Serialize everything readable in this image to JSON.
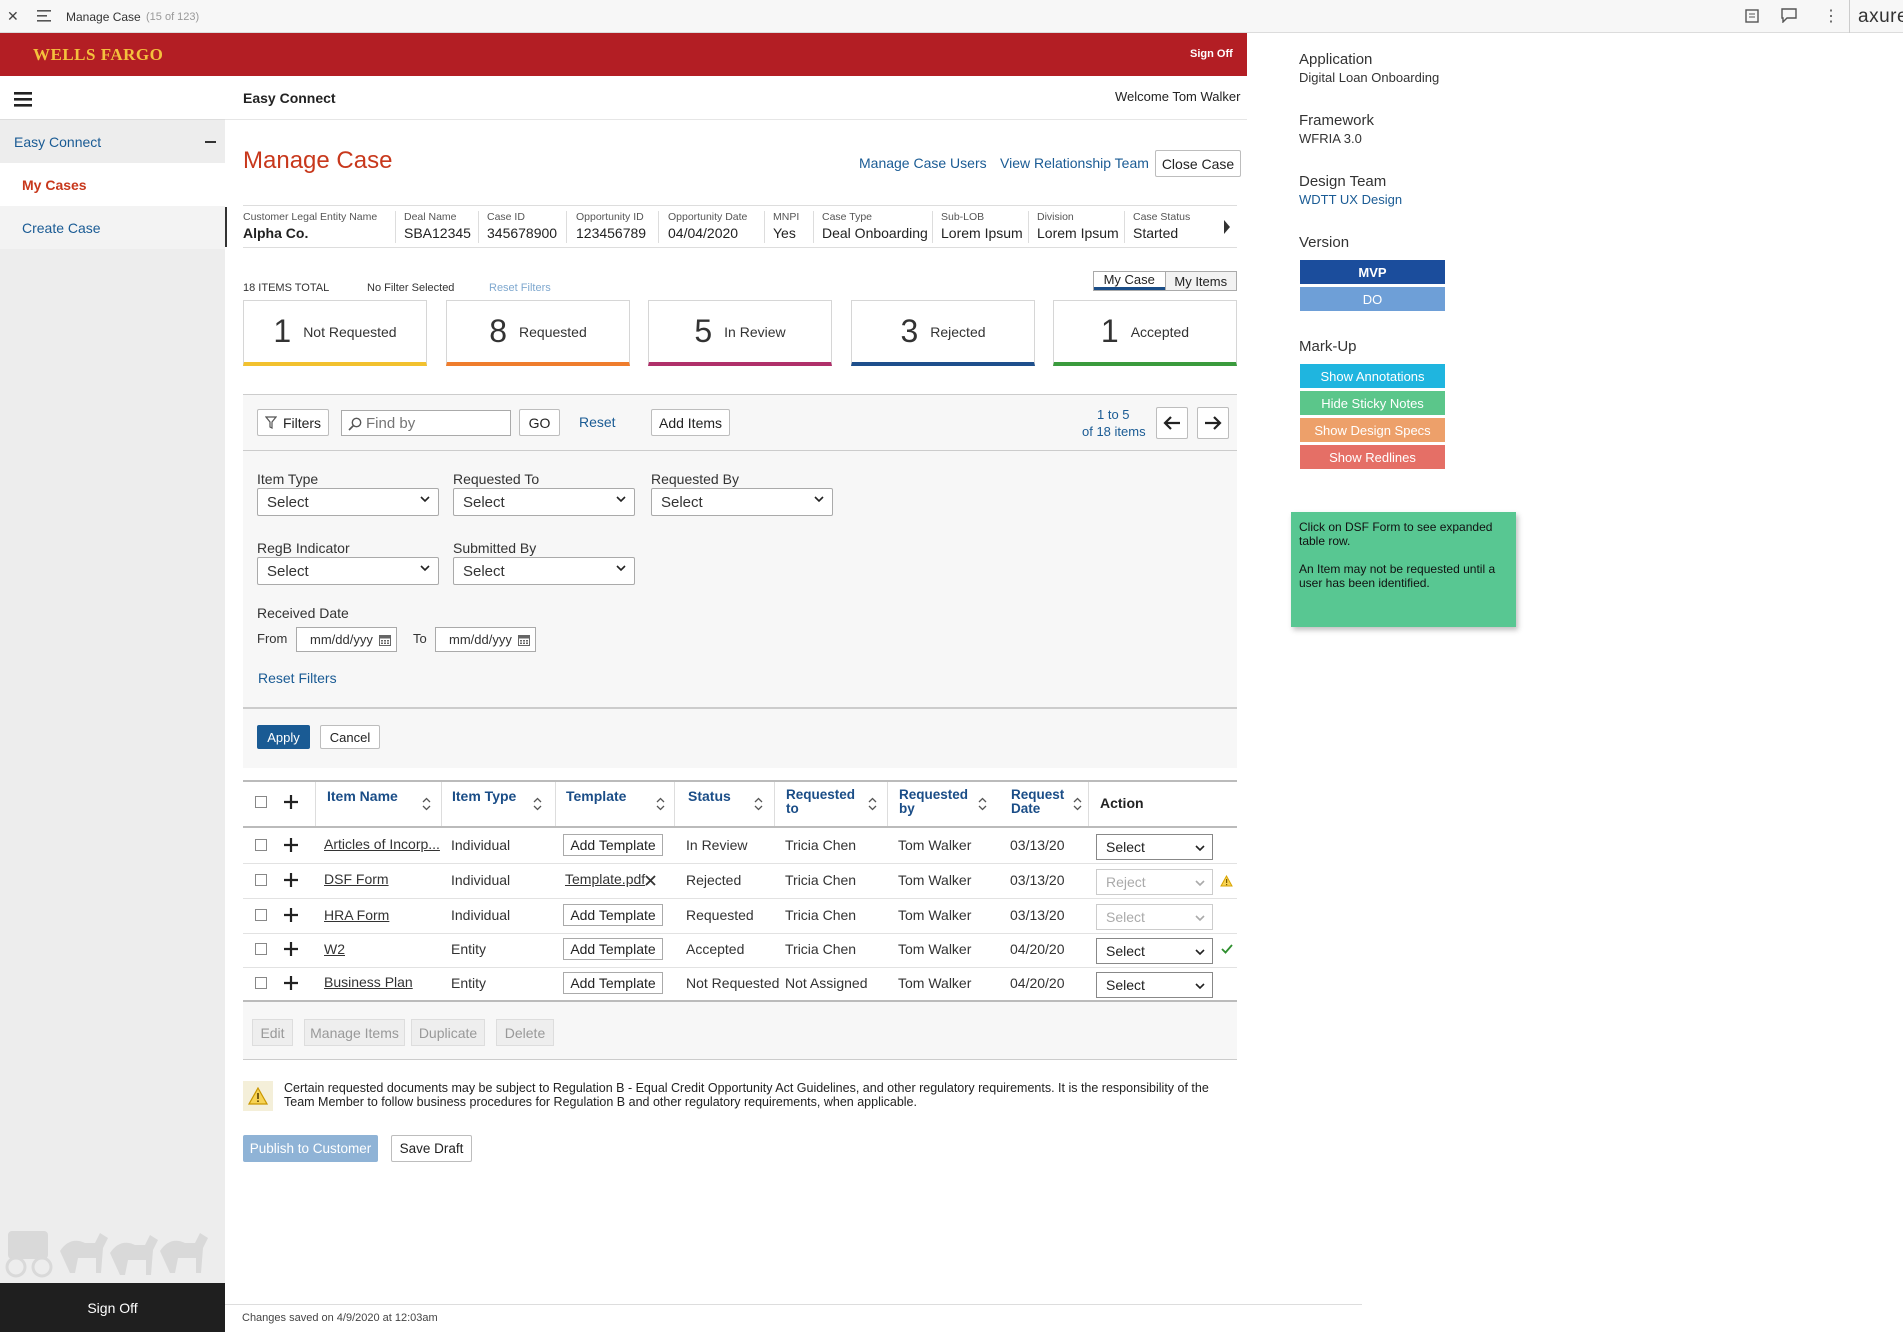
{
  "viewer": {
    "title": "Manage Case",
    "page_counter": "(15 of 123)",
    "brand": "axure"
  },
  "header": {
    "logo": "WELLS FARGO",
    "sign_off": "Sign Off",
    "app_name": "Easy Connect",
    "welcome": "Welcome Tom Walker"
  },
  "sidebar": {
    "section": "Easy Connect",
    "items": [
      {
        "label": "My Cases"
      },
      {
        "label": "Create Case"
      }
    ],
    "sign_off": "Sign Off"
  },
  "page": {
    "title": "Manage Case",
    "actions": {
      "manage_users": "Manage Case Users",
      "view_team": "View Relationship Team",
      "close_case": "Close Case"
    }
  },
  "case_info": [
    {
      "label": "Customer Legal Entity Name",
      "value": "Alpha Co."
    },
    {
      "label": "Deal Name",
      "value": "SBA12345"
    },
    {
      "label": "Case ID",
      "value": "345678900"
    },
    {
      "label": "Opportunity ID",
      "value": "123456789"
    },
    {
      "label": "Opportunity Date",
      "value": "04/04/2020"
    },
    {
      "label": "MNPI",
      "value": "Yes"
    },
    {
      "label": "Case Type",
      "value": "Deal Onboarding"
    },
    {
      "label": "Sub-LOB",
      "value": "Lorem Ipsum"
    },
    {
      "label": "Division",
      "value": "Lorem Ipsum"
    },
    {
      "label": "Case Status",
      "value": "Started"
    }
  ],
  "summary": {
    "total": "18 ITEMS TOTAL",
    "filter_state": "No Filter Selected",
    "reset_filters": "Reset Filters",
    "toggle": [
      "My Case",
      "My Items"
    ]
  },
  "status_cards": [
    {
      "count": "1",
      "label": "Not Requested",
      "color": "#f2c12e"
    },
    {
      "count": "8",
      "label": "Requested",
      "color": "#ef7d2d"
    },
    {
      "count": "5",
      "label": "In Review",
      "color": "#b0306a"
    },
    {
      "count": "3",
      "label": "Rejected",
      "color": "#1e4f8c"
    },
    {
      "count": "1",
      "label": "Accepted",
      "color": "#3a9b3d"
    }
  ],
  "toolbar": {
    "filters": "Filters",
    "search_placeholder": "Find by",
    "go": "GO",
    "reset": "Reset",
    "add_items": "Add Items",
    "pagination_range": "1 to 5",
    "pagination_total": "of 18 items"
  },
  "filters": {
    "item_type": {
      "label": "Item Type",
      "value": "Select"
    },
    "requested_to": {
      "label": "Requested To",
      "value": "Select"
    },
    "requested_by": {
      "label": "Requested By",
      "value": "Select"
    },
    "regb": {
      "label": "RegB Indicator",
      "value": "Select"
    },
    "submitted_by": {
      "label": "Submitted By",
      "value": "Select"
    },
    "received_date": {
      "label": "Received Date",
      "from": "From",
      "to": "To",
      "placeholder": "mm/dd/yyy"
    },
    "reset": "Reset Filters",
    "apply": "Apply",
    "cancel": "Cancel"
  },
  "table": {
    "headers": [
      "Item Name",
      "Item Type",
      "Template",
      "Status",
      "Requested to",
      "Requested by",
      "Request Date",
      "Action"
    ],
    "rows": [
      {
        "name": "Articles of Incorp...",
        "type": "Individual",
        "template": "Add Template",
        "status": "In Review",
        "req_to": "Tricia Chen",
        "req_by": "Tom Walker",
        "date": "03/13/20",
        "action": "Select"
      },
      {
        "name": "DSF Form",
        "type": "Individual",
        "template": "Template.pdf",
        "status": "Rejected",
        "req_to": "Tricia Chen",
        "req_by": "Tom Walker",
        "date": "03/13/20",
        "action": "Reject"
      },
      {
        "name": "HRA Form",
        "type": "Individual",
        "template": "Add Template",
        "status": "Requested",
        "req_to": "Tricia Chen",
        "req_by": "Tom Walker",
        "date": "03/13/20",
        "action": "Select"
      },
      {
        "name": "W2",
        "type": "Entity",
        "template": "Add Template",
        "status": "Accepted",
        "req_to": "Tricia Chen",
        "req_by": "Tom Walker",
        "date": "04/20/20",
        "action": "Select"
      },
      {
        "name": "Business Plan",
        "type": "Entity",
        "template": "Add Template",
        "status": "Not Requested",
        "req_to": "Not Assigned",
        "req_by": "Tom Walker",
        "date": "04/20/20",
        "action": "Select"
      }
    ],
    "bulk_actions": [
      "Edit",
      "Manage Items",
      "Duplicate",
      "Delete"
    ]
  },
  "notice": {
    "text": "Certain requested documents may be subject to Regulation B - Equal Credit Opportunity Act Guidelines, and other regulatory requirements. It is the responsibility of the Team Member to follow business procedures for Regulation B and other regulatory requirements, when applicable."
  },
  "footer_actions": {
    "publish": "Publish to Customer",
    "save_draft": "Save Draft",
    "saved": "Changes saved on 4/9/2020 at 12:03am"
  },
  "right_panel": {
    "application_label": "Application",
    "application": "Digital Loan Onboarding",
    "framework_label": "Framework",
    "framework": "WFRIA 3.0",
    "design_team_label": "Design Team",
    "design_team": "WDTT UX Design",
    "version_label": "Version",
    "versions": [
      "MVP",
      "DO"
    ],
    "markup_label": "Mark-Up",
    "markup_buttons": [
      "Show Annotations",
      "Hide Sticky Notes",
      "Show Design Specs",
      "Show Redlines"
    ],
    "sticky_note": [
      "Click on DSF Form to see expanded table row.",
      "An Item may not be requested until a user has been identified."
    ]
  }
}
